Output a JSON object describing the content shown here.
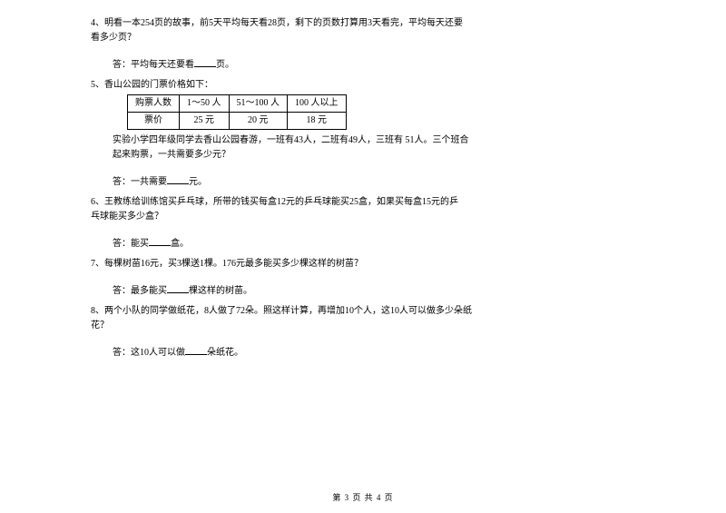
{
  "q4": {
    "text_a": "4、明看一本254页的故事，前5天平均每天看28页，剩下的页数打算用3天看完，平均每天还要",
    "text_b": "看多少页？",
    "ans_prefix": "答：平均每天还要看",
    "ans_suffix": "页。"
  },
  "q5": {
    "title": "5、香山公园的门票价格如下：",
    "table": {
      "header": [
        "购票人数",
        "1～50 人",
        "51～100 人",
        "100 人以上"
      ],
      "row": [
        "票价",
        "25 元",
        "20 元",
        "18 元"
      ]
    },
    "text_a": "实验小学四年级同学去香山公园春游，一班有43人，二班有49人，三班有  51人。三个班合",
    "text_b": "起来购票，一共需要多少元？",
    "ans_prefix": "答：一共需要",
    "ans_suffix": "元。"
  },
  "q6": {
    "text_a": "6、王教练给训练馆买乒乓球，所带的钱买每盒12元的乒乓球能买25盒，如果买每盒15元的乒",
    "text_b": "乓球能买多少盒？",
    "ans_prefix": "答：能买",
    "ans_suffix": "盒。"
  },
  "q7": {
    "text": "7、每棵树苗16元，买3棵送1棵。176元最多能买多少棵这样的树苗？",
    "ans_prefix": "答：最多能买",
    "ans_suffix": "棵这样的树苗。"
  },
  "q8": {
    "text_a": "8、两个小队的同学做纸花，8人做了72朵。照这样计算，再增加10个人，这10人可以做多少朵纸",
    "text_b": "花？",
    "ans_prefix": "答：这10人可以做",
    "ans_suffix": "朵纸花。"
  },
  "footer": "第 3 页 共 4 页"
}
